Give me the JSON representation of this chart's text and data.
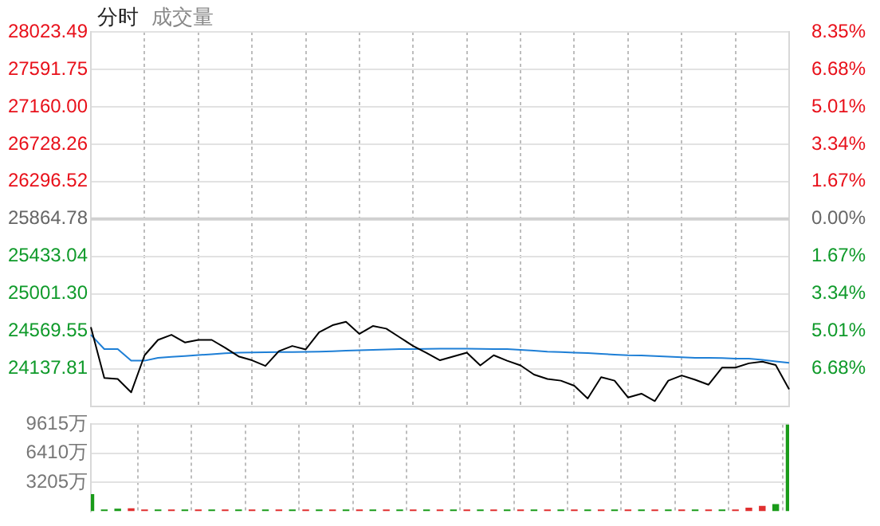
{
  "chart_data": [
    {
      "type": "line",
      "title": "分时",
      "subtitle": "成交量",
      "categories": [
        null,
        null,
        null,
        null,
        null,
        null,
        null,
        null,
        null,
        null,
        null,
        null,
        null,
        null,
        null,
        null,
        null,
        null,
        null,
        null,
        null,
        null,
        null,
        null,
        null,
        null,
        null,
        null,
        null,
        null,
        null,
        null,
        null,
        null,
        null,
        null,
        null,
        null,
        null,
        null,
        null,
        null,
        null,
        null,
        null,
        null,
        null,
        null,
        null,
        null,
        null,
        null,
        null
      ],
      "series": [
        {
          "color": "#000000",
          "values": [
            24617,
            24030,
            24020,
            23865,
            24293,
            24470,
            24529,
            24441,
            24470,
            24470,
            24380,
            24280,
            24235,
            24170,
            24340,
            24400,
            24360,
            24558,
            24640,
            24680,
            24540,
            24630,
            24600,
            24500,
            24400,
            24320,
            24235,
            24280,
            24323,
            24176,
            24293,
            24230,
            24176,
            24070,
            24020,
            24000,
            23941,
            23794,
            24040,
            24000,
            23806,
            23850,
            23764,
            24000,
            24060,
            24010,
            23953,
            24150,
            24150,
            24200,
            24220,
            24180,
            23900
          ]
        },
        {
          "color": "#1e7fd6",
          "values": [
            24529,
            24364,
            24364,
            24230,
            24230,
            24264,
            24275,
            24285,
            24295,
            24305,
            24315,
            24323,
            24325,
            24327,
            24329,
            24331,
            24333,
            24335,
            24340,
            24345,
            24350,
            24355,
            24360,
            24364,
            24364,
            24367,
            24370,
            24370,
            24368,
            24366,
            24364,
            24364,
            24355,
            24345,
            24335,
            24330,
            24323,
            24318,
            24310,
            24300,
            24293,
            24290,
            24283,
            24278,
            24270,
            24264,
            24264,
            24260,
            24255,
            24253,
            24240,
            24222,
            24205
          ]
        }
      ],
      "ylim": [
        23706.07,
        28023.49
      ],
      "yticks": [
        {
          "value": 28023.49,
          "label": "28023.49"
        },
        {
          "value": 27591.75,
          "label": "27591.75"
        },
        {
          "value": 27160,
          "label": "27160.00"
        },
        {
          "value": 26728.26,
          "label": "26728.26"
        },
        {
          "value": 26296.52,
          "label": "26296.52"
        },
        {
          "value": 25864.78,
          "label": "25864.78"
        },
        {
          "value": 25433.04,
          "label": "25433.04"
        },
        {
          "value": 25001.3,
          "label": "25001.30"
        },
        {
          "value": 24569.55,
          "label": "24569.55"
        },
        {
          "value": 24137.81,
          "label": "24137.81"
        }
      ],
      "y2lim": [
        -8.35,
        8.35
      ],
      "y2ticks": [
        {
          "value": 8.35,
          "label": "8.35%"
        },
        {
          "value": 6.68,
          "label": "6.68%"
        },
        {
          "value": 5.01,
          "label": "5.01%"
        },
        {
          "value": 3.34,
          "label": "3.34%"
        },
        {
          "value": 1.67,
          "label": "1.67%"
        },
        {
          "value": 0,
          "label": "0.00%"
        },
        {
          "value": -1.67,
          "label": "1.67%"
        },
        {
          "value": -3.34,
          "label": "3.34%"
        },
        {
          "value": -5.01,
          "label": "5.01%"
        },
        {
          "value": -6.68,
          "label": "6.68%"
        }
      ],
      "ref_lines": [
        {
          "axis": "y",
          "value": 25864.78,
          "color": "#d0d0d0"
        }
      ],
      "grid": true,
      "legend": false,
      "marker": "none",
      "line_style": "solid",
      "tick_labels": "y"
    },
    {
      "type": "bar",
      "categories": [
        null,
        null,
        null,
        null,
        null,
        null,
        null,
        null,
        null,
        null,
        null,
        null,
        null,
        null,
        null,
        null,
        null,
        null,
        null,
        null,
        null,
        null,
        null,
        null,
        null,
        null,
        null,
        null,
        null,
        null,
        null,
        null,
        null,
        null,
        null,
        null,
        null,
        null,
        null,
        null,
        null,
        null,
        null,
        null,
        null,
        null,
        null,
        null,
        null,
        null,
        null,
        null,
        null
      ],
      "values": [
        1900,
        200,
        300,
        350,
        200,
        200,
        200,
        200,
        200,
        200,
        200,
        200,
        200,
        200,
        200,
        200,
        200,
        200,
        200,
        200,
        200,
        200,
        200,
        200,
        200,
        200,
        200,
        200,
        200,
        200,
        200,
        200,
        200,
        200,
        200,
        200,
        200,
        200,
        200,
        200,
        200,
        200,
        200,
        200,
        200,
        200,
        200,
        200,
        200,
        400,
        600,
        800,
        9615
      ],
      "colors": [
        "#1a9b1a",
        "#1a9b1a",
        "#1a9b1a",
        "#e03030",
        "#e03030",
        "#1a9b1a",
        "#e03030",
        "#1a9b1a",
        "#e03030",
        "#1a9b1a",
        "#e03030",
        "#1a9b1a",
        "#e03030",
        "#1a9b1a",
        "#e03030",
        "#1a9b1a",
        "#e03030",
        "#1a9b1a",
        "#e03030",
        "#1a9b1a",
        "#e03030",
        "#1a9b1a",
        "#e03030",
        "#1a9b1a",
        "#e03030",
        "#1a9b1a",
        "#e03030",
        "#1a9b1a",
        "#e03030",
        "#1a9b1a",
        "#e03030",
        "#1a9b1a",
        "#e03030",
        "#1a9b1a",
        "#e03030",
        "#1a9b1a",
        "#e03030",
        "#1a9b1a",
        "#e03030",
        "#1a9b1a",
        "#e03030",
        "#1a9b1a",
        "#e03030",
        "#1a9b1a",
        "#e03030",
        "#1a9b1a",
        "#e03030",
        "#1a9b1a",
        "#e03030",
        "#e03030",
        "#e03030",
        "#1a9b1a",
        "#1a9b1a"
      ],
      "ylim": [
        0,
        9615
      ],
      "yticks": [
        {
          "value": 3205,
          "label": "3205万"
        },
        {
          "value": 6410,
          "label": "6410万"
        },
        {
          "value": 9615,
          "label": "9615万"
        }
      ],
      "grid": true,
      "legend": false,
      "tick_labels": "y"
    }
  ]
}
